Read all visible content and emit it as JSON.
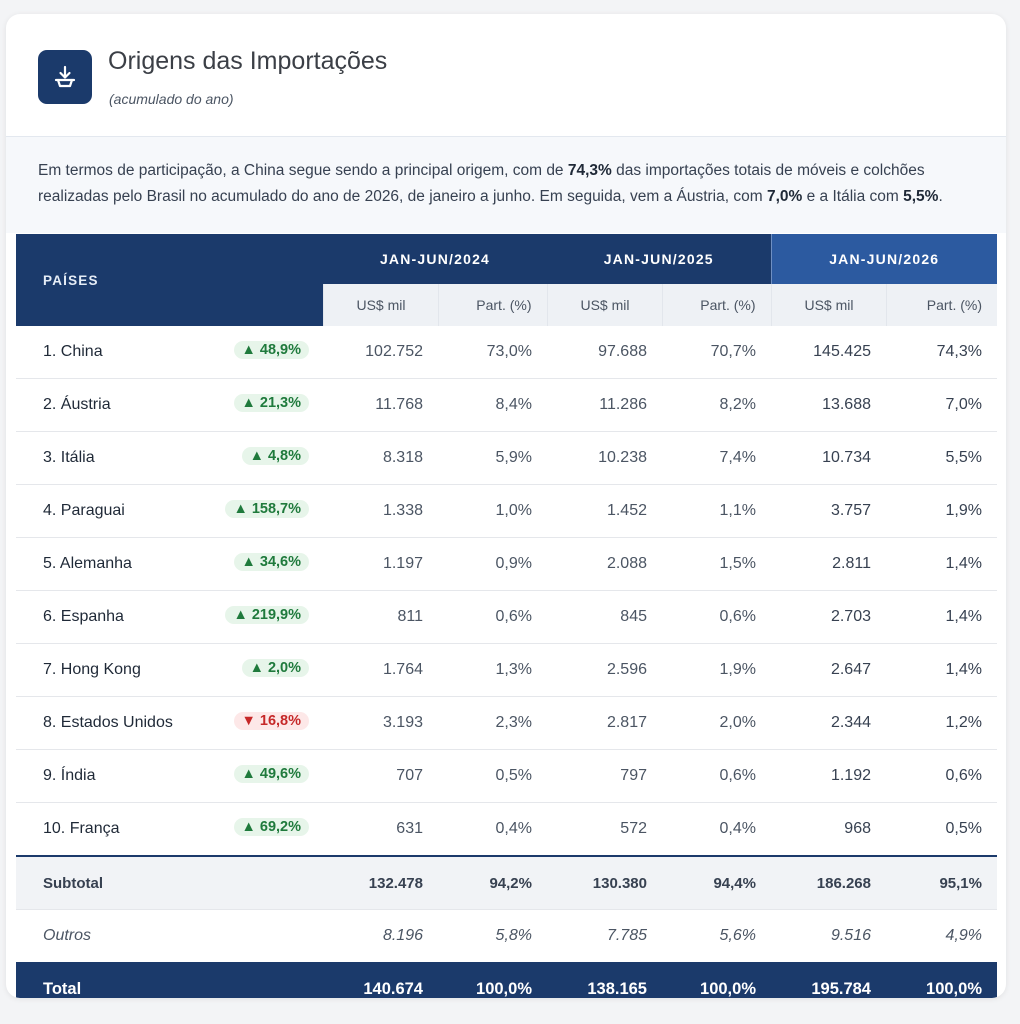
{
  "header": {
    "title": "Origens das Importações",
    "subtitle": "(acumulado do ano)",
    "icon": "download-tray-icon"
  },
  "summary": {
    "t1": "Em termos de participação, a China segue sendo a principal origem, com de ",
    "b1": "74,3%",
    "t2": " das importações totais de móveis e colchões realizadas pelo Brasil no acumulado do ano de 2026, de janeiro a junho. Em seguida, vem a Áustria, com ",
    "b2": "7,0%",
    "t3": " e a Itália com ",
    "b3": "5,5%",
    "t4": "."
  },
  "table": {
    "country_header": "PAÍSES",
    "periods": [
      "JAN-JUN/2024",
      "JAN-JUN/2025",
      "JAN-JUN/2026"
    ],
    "sub_headers": [
      "US$ mil",
      "Part. (%)",
      "US$ mil",
      "Part. (%)",
      "US$ mil",
      "Part. (%)"
    ],
    "rows": [
      {
        "name": "1. China",
        "change": "▲ 48,9%",
        "dir": "up",
        "values": [
          "102.752",
          "73,0%",
          "97.688",
          "70,7%",
          "145.425",
          "74,3%"
        ]
      },
      {
        "name": "2. Áustria",
        "change": "▲ 21,3%",
        "dir": "up",
        "values": [
          "11.768",
          "8,4%",
          "11.286",
          "8,2%",
          "13.688",
          "7,0%"
        ]
      },
      {
        "name": "3. Itália",
        "change": "▲ 4,8%",
        "dir": "up",
        "values": [
          "8.318",
          "5,9%",
          "10.238",
          "7,4%",
          "10.734",
          "5,5%"
        ]
      },
      {
        "name": "4. Paraguai",
        "change": "▲ 158,7%",
        "dir": "up",
        "values": [
          "1.338",
          "1,0%",
          "1.452",
          "1,1%",
          "3.757",
          "1,9%"
        ]
      },
      {
        "name": "5. Alemanha",
        "change": "▲ 34,6%",
        "dir": "up",
        "values": [
          "1.197",
          "0,9%",
          "2.088",
          "1,5%",
          "2.811",
          "1,4%"
        ]
      },
      {
        "name": "6. Espanha",
        "change": "▲ 219,9%",
        "dir": "up",
        "values": [
          "811",
          "0,6%",
          "845",
          "0,6%",
          "2.703",
          "1,4%"
        ]
      },
      {
        "name": "7. Hong Kong",
        "change": "▲ 2,0%",
        "dir": "up",
        "values": [
          "1.764",
          "1,3%",
          "2.596",
          "1,9%",
          "2.647",
          "1,4%"
        ]
      },
      {
        "name": "8. Estados Unidos",
        "change": "▼ 16,8%",
        "dir": "down",
        "values": [
          "3.193",
          "2,3%",
          "2.817",
          "2,0%",
          "2.344",
          "1,2%"
        ]
      },
      {
        "name": "9. Índia",
        "change": "▲ 49,6%",
        "dir": "up",
        "values": [
          "707",
          "0,5%",
          "797",
          "0,6%",
          "1.192",
          "0,6%"
        ]
      },
      {
        "name": "10. França",
        "change": "▲ 69,2%",
        "dir": "up",
        "values": [
          "631",
          "0,4%",
          "572",
          "0,4%",
          "968",
          "0,5%"
        ]
      }
    ],
    "subtotal": {
      "label": "Subtotal",
      "values": [
        "132.478",
        "94,2%",
        "130.380",
        "94,4%",
        "186.268",
        "95,1%"
      ]
    },
    "others": {
      "label": "Outros",
      "values": [
        "8.196",
        "5,8%",
        "7.785",
        "5,6%",
        "9.516",
        "4,9%"
      ]
    },
    "total": {
      "label": "Total",
      "values": [
        "140.674",
        "100,0%",
        "138.165",
        "100,0%",
        "195.784",
        "100,0%"
      ]
    }
  },
  "colors": {
    "navy": "#1b3a6b",
    "current_period": "#2c5aa0",
    "up": "#1f7a3c",
    "down": "#c62828"
  }
}
